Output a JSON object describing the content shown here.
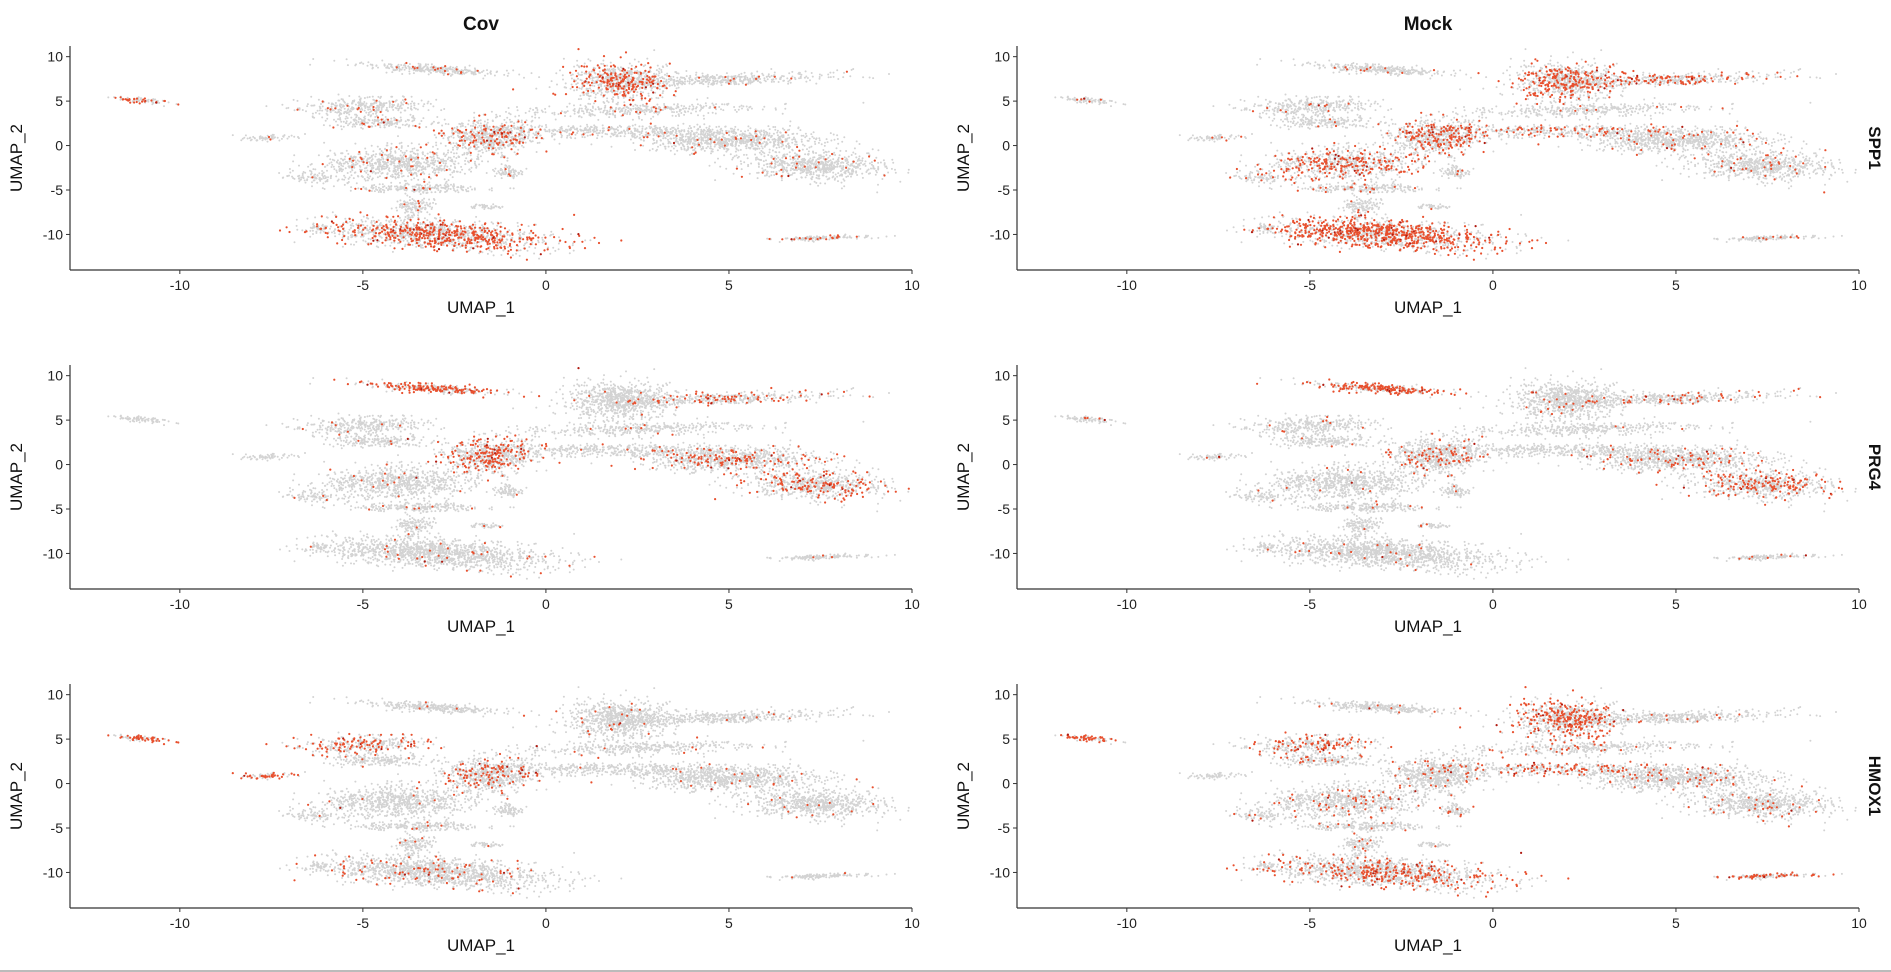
{
  "chart_data": {
    "type": "scatter",
    "columns": [
      "Cov",
      "Mock"
    ],
    "rows": [
      "SPP1",
      "PRG4",
      "HMOX1"
    ],
    "xlabel": "UMAP_1",
    "ylabel": "UMAP_2",
    "xlim": [
      -13,
      10
    ],
    "ylim": [
      -14,
      11.2
    ],
    "xticks": [
      -10,
      -5,
      0,
      5,
      10
    ],
    "yticks": [
      -10,
      -5,
      0,
      5,
      10
    ],
    "grid": false,
    "legend": "none",
    "colors": {
      "low": "#d3d3d3",
      "high": "#e8502e",
      "max": "#b01a10",
      "axis": "#333333"
    },
    "clusters": [
      {
        "c": [
          -11.1,
          5.1
        ],
        "s": [
          0.55,
          0.18
        ],
        "a": -25,
        "n": 40
      },
      {
        "c": [
          -3.2,
          8.6
        ],
        "s": [
          1.2,
          0.3
        ],
        "a": -15,
        "n": 150
      },
      {
        "c": [
          2.0,
          7.2
        ],
        "s": [
          0.9,
          1.3
        ],
        "a": 0,
        "n": 380
      },
      {
        "c": [
          4.9,
          7.4
        ],
        "s": [
          1.8,
          0.45
        ],
        "a": 8,
        "n": 200
      },
      {
        "c": [
          2.6,
          4.0
        ],
        "s": [
          2.0,
          0.45
        ],
        "a": 5,
        "n": 170
      },
      {
        "c": [
          -5.0,
          4.4
        ],
        "s": [
          1.1,
          0.7
        ],
        "a": 10,
        "n": 160
      },
      {
        "c": [
          -4.6,
          2.6
        ],
        "s": [
          0.9,
          0.4
        ],
        "a": 0,
        "n": 90
      },
      {
        "c": [
          -7.6,
          0.9
        ],
        "s": [
          0.45,
          0.2
        ],
        "a": 15,
        "n": 30
      },
      {
        "c": [
          -1.5,
          1.0
        ],
        "s": [
          0.8,
          1.2
        ],
        "a": 0,
        "n": 330
      },
      {
        "c": [
          1.8,
          1.6
        ],
        "s": [
          2.2,
          0.45
        ],
        "a": 0,
        "n": 200
      },
      {
        "c": [
          5.0,
          0.6
        ],
        "s": [
          1.5,
          0.8
        ],
        "a": 0,
        "n": 380
      },
      {
        "c": [
          7.3,
          -2.3
        ],
        "s": [
          1.2,
          1.0
        ],
        "a": -15,
        "n": 330
      },
      {
        "c": [
          -4.0,
          -2.0
        ],
        "s": [
          1.3,
          1.1
        ],
        "a": 15,
        "n": 370
      },
      {
        "c": [
          -3.5,
          -4.8
        ],
        "s": [
          1.2,
          0.3
        ],
        "a": 0,
        "n": 110
      },
      {
        "c": [
          -6.4,
          -3.6
        ],
        "s": [
          0.5,
          0.35
        ],
        "a": -20,
        "n": 40
      },
      {
        "c": [
          -3.6,
          -6.8
        ],
        "s": [
          0.35,
          0.7
        ],
        "a": 0,
        "n": 60
      },
      {
        "c": [
          -1.6,
          -6.9
        ],
        "s": [
          0.3,
          0.2
        ],
        "a": 0,
        "n": 20
      },
      {
        "c": [
          -1.0,
          -3.0
        ],
        "s": [
          0.25,
          0.45
        ],
        "a": 0,
        "n": 35
      },
      {
        "c": [
          -3.0,
          -10.0
        ],
        "s": [
          1.9,
          0.95
        ],
        "a": -18,
        "n": 650
      },
      {
        "c": [
          -6.2,
          -9.3
        ],
        "s": [
          0.2,
          0.2
        ],
        "a": 0,
        "n": 20
      },
      {
        "c": [
          7.5,
          -10.4
        ],
        "s": [
          0.9,
          0.15
        ],
        "a": 8,
        "n": 70
      }
    ],
    "panels": [
      {
        "row": "SPP1",
        "col": "Cov",
        "base": 0.04,
        "hot": {
          "2": 0.25,
          "18": 0.3,
          "8": 0.12,
          "20": 0.15,
          "0": 0.3
        }
      },
      {
        "row": "SPP1",
        "col": "Mock",
        "base": 0.05,
        "hot": {
          "2": 0.25,
          "3": 0.2,
          "18": 0.45,
          "12": 0.25,
          "8": 0.2,
          "9": 0.15
        }
      },
      {
        "row": "PRG4",
        "col": "Cov",
        "base": 0.02,
        "hot": {
          "1": 0.5,
          "8": 0.25,
          "10": 0.15,
          "11": 0.2,
          "3": 0.15
        }
      },
      {
        "row": "PRG4",
        "col": "Mock",
        "base": 0.02,
        "hot": {
          "1": 0.5,
          "8": 0.12,
          "11": 0.2,
          "10": 0.1,
          "3": 0.12
        }
      },
      {
        "row": "HMOX1",
        "col": "Cov",
        "base": 0.02,
        "hot": {
          "0": 0.5,
          "5": 0.3,
          "7": 0.35,
          "8": 0.15,
          "18": 0.05
        }
      },
      {
        "row": "HMOX1",
        "col": "Mock",
        "base": 0.05,
        "hot": {
          "0": 0.5,
          "2": 0.3,
          "5": 0.2,
          "9": 0.2,
          "18": 0.15,
          "20": 0.3
        }
      }
    ]
  }
}
